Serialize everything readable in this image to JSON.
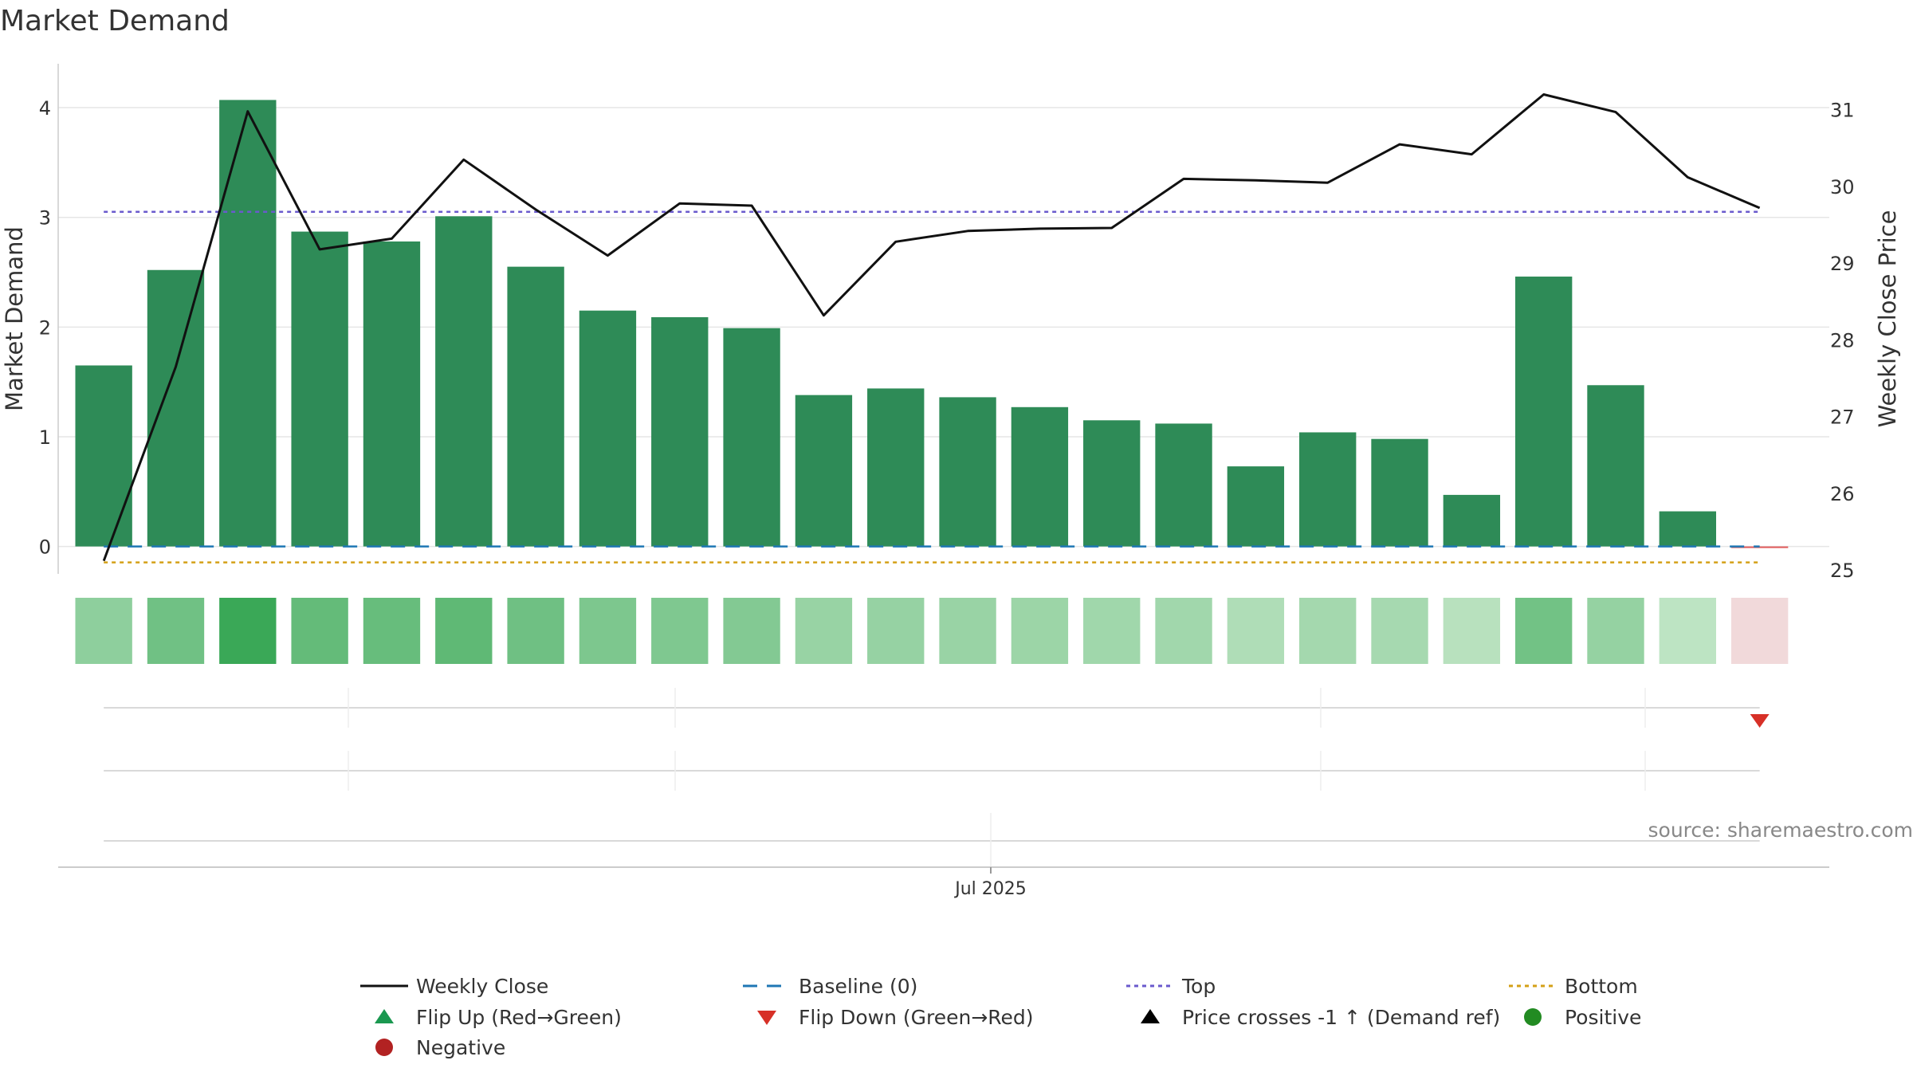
{
  "chart_data": {
    "type": "bar",
    "title": "Market Demand",
    "ylabel_left": "Market Demand",
    "ylabel_right": "Weekly Close Price",
    "x_tick_label": "Jul 2025",
    "source": "source: sharemaestro.com",
    "ylim_left": [
      -0.25,
      4.4
    ],
    "ylim_right": [
      24.95,
      31.6
    ],
    "yticks_left": [
      "0",
      "1",
      "2",
      "3",
      "4"
    ],
    "yticks_right": [
      "25",
      "26",
      "27",
      "28",
      "29",
      "30",
      "31"
    ],
    "grid": true,
    "legend_position": "bottom",
    "bar_values": [
      1.65,
      2.52,
      4.07,
      2.87,
      2.78,
      3.01,
      2.55,
      2.15,
      2.09,
      1.99,
      1.38,
      1.44,
      1.36,
      1.27,
      1.15,
      1.12,
      0.73,
      1.04,
      0.98,
      0.47,
      2.46,
      1.47,
      0.32,
      -0.01
    ],
    "price_values": [
      25.12,
      27.65,
      30.98,
      29.18,
      29.32,
      30.35,
      29.7,
      29.1,
      29.78,
      29.75,
      28.32,
      29.28,
      29.42,
      29.45,
      29.46,
      30.1,
      30.08,
      30.05,
      30.55,
      30.42,
      31.2,
      30.97,
      30.12,
      29.72
    ],
    "heat_values": [
      1.65,
      2.52,
      4.07,
      2.87,
      2.78,
      3.01,
      2.55,
      2.15,
      2.09,
      1.99,
      1.38,
      1.44,
      1.36,
      1.27,
      1.15,
      1.12,
      0.73,
      1.04,
      0.98,
      0.47,
      2.46,
      1.47,
      0.32,
      -0.01
    ],
    "top_price": 29.67,
    "bottom_price": 25.1,
    "baseline_value": 0,
    "flip_down_index": 23,
    "colors": {
      "bar_positive": "#2e8b57",
      "bar_negative": "#e05a5a",
      "price_line": "#111111",
      "baseline": "#1f77b4",
      "top": "#6a5acd",
      "bottom": "#d4a017",
      "flip_up": "#1a9850",
      "flip_down": "#d73027",
      "cross_marker": "#000000",
      "positive_dot": "#228b22",
      "negative_dot": "#b22222",
      "axis_text": "#333333",
      "grid": "#e6e6e6"
    },
    "legend": [
      {
        "label": "Weekly Close",
        "kind": "line",
        "color": "#111111"
      },
      {
        "label": "Baseline (0)",
        "kind": "dash",
        "color": "#1f77b4"
      },
      {
        "label": "Top",
        "kind": "dot",
        "color": "#6a5acd"
      },
      {
        "label": "Bottom",
        "kind": "dot",
        "color": "#d4a017"
      },
      {
        "label": "Flip Up (Red→Green)",
        "kind": "tri-up",
        "color": "#1a9850"
      },
      {
        "label": "Flip Down (Green→Red)",
        "kind": "tri-down",
        "color": "#d73027"
      },
      {
        "label": "Price crosses -1 ↑ (Demand ref)",
        "kind": "tri-up",
        "color": "#000000"
      },
      {
        "label": "Positive",
        "kind": "circle",
        "color": "#228b22"
      },
      {
        "label": "Negative",
        "kind": "circle",
        "color": "#b22222"
      }
    ]
  }
}
